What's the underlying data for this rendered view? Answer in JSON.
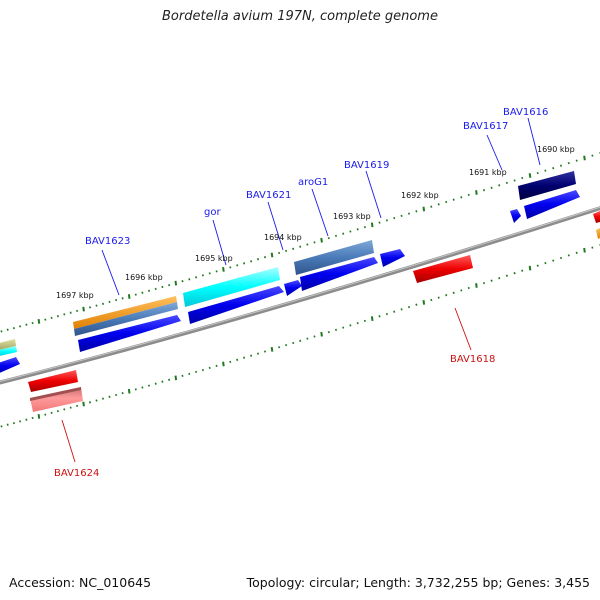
{
  "title": "Bordetella avium 197N, complete genome",
  "footer": {
    "accession": "Accession: NC_010645",
    "topology": "Topology: circular; Length: 3,732,255 bp; Genes: 3,455"
  },
  "colors": {
    "backbone": "#8c8c8c",
    "tick": "#1f7a1f",
    "forward_cds": "#0000ee",
    "reverse_cds": "#ee0000",
    "label_forward": "#1a1aee",
    "label_reverse": "#cc1111"
  },
  "kbp_labels": [
    {
      "text": "1697 kbp"
    },
    {
      "text": "1696 kbp"
    },
    {
      "text": "1695 kbp"
    },
    {
      "text": "1694 kbp"
    },
    {
      "text": "1693 kbp"
    },
    {
      "text": "1692 kbp"
    },
    {
      "text": "1691 kbp"
    },
    {
      "text": "1690 kbp"
    }
  ],
  "gene_labels": [
    {
      "text": "BAV1623",
      "strand": "forward"
    },
    {
      "text": "gor",
      "strand": "forward"
    },
    {
      "text": "BAV1621",
      "strand": "forward"
    },
    {
      "text": "aroG1",
      "strand": "forward"
    },
    {
      "text": "BAV1619",
      "strand": "forward"
    },
    {
      "text": "BAV1617",
      "strand": "forward"
    },
    {
      "text": "BAV1616",
      "strand": "forward"
    },
    {
      "text": "BAV1618",
      "strand": "reverse"
    },
    {
      "text": "BAV1624",
      "strand": "reverse"
    }
  ]
}
